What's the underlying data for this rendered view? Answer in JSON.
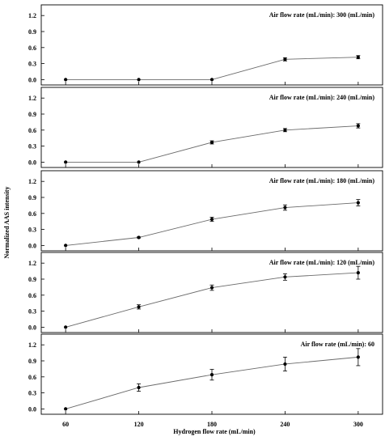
{
  "chart_data": {
    "type": "line",
    "layout": "five vertically stacked panels sharing the x axis",
    "xlabel": "Hydrogen flow rate (mL/min)",
    "ylabel": "Normalized AAS intensity",
    "x_ticks": [
      60,
      120,
      180,
      240,
      300
    ],
    "xlim": [
      40,
      320
    ],
    "panels": [
      {
        "title": "Air flow rate (mL/min): 300 (mL/min)",
        "ylim": [
          -0.1,
          1.4
        ],
        "y_ticks": [
          "0.0",
          "0.3",
          "0.6",
          "0.9",
          "1.2"
        ],
        "x": [
          60,
          120,
          180,
          240,
          300
        ],
        "values": [
          0.0,
          0.0,
          0.0,
          0.38,
          0.42
        ],
        "errors": [
          0.0,
          0.0,
          0.0,
          0.03,
          0.03
        ]
      },
      {
        "title": "Air flow rate (mL/min): 240 (mL/min)",
        "ylim": [
          -0.1,
          1.4
        ],
        "y_ticks": [
          "0.0",
          "0.3",
          "0.6",
          "0.9",
          "1.2"
        ],
        "x": [
          60,
          120,
          180,
          240,
          300
        ],
        "values": [
          0.0,
          0.0,
          0.37,
          0.6,
          0.68
        ],
        "errors": [
          0.0,
          0.0,
          0.03,
          0.03,
          0.04
        ]
      },
      {
        "title": "Air flow rate (mL/min): 180 (mL/min)",
        "ylim": [
          -0.1,
          1.4
        ],
        "y_ticks": [
          "0.0",
          "0.3",
          "0.6",
          "0.9",
          "1.2"
        ],
        "x": [
          60,
          120,
          180,
          240,
          300
        ],
        "values": [
          0.0,
          0.15,
          0.49,
          0.71,
          0.8
        ],
        "errors": [
          0.0,
          0.01,
          0.04,
          0.05,
          0.06
        ]
      },
      {
        "title": "Air flow rate (mL/min): 120 (mL/min)",
        "ylim": [
          -0.1,
          1.4
        ],
        "y_ticks": [
          "0.0",
          "0.3",
          "0.6",
          "0.9",
          "1.2"
        ],
        "x": [
          60,
          120,
          180,
          240,
          300
        ],
        "values": [
          0.0,
          0.38,
          0.74,
          0.94,
          1.02
        ],
        "errors": [
          0.0,
          0.04,
          0.05,
          0.06,
          0.12
        ]
      },
      {
        "title": "Air flow rate (mL/min): 60",
        "ylim": [
          -0.1,
          1.4
        ],
        "y_ticks": [
          "0.0",
          "0.3",
          "0.6",
          "0.9",
          "1.2"
        ],
        "x": [
          60,
          120,
          180,
          240,
          300
        ],
        "values": [
          0.0,
          0.4,
          0.64,
          0.84,
          0.97
        ],
        "errors": [
          0.0,
          0.07,
          0.1,
          0.13,
          0.16
        ]
      }
    ]
  }
}
